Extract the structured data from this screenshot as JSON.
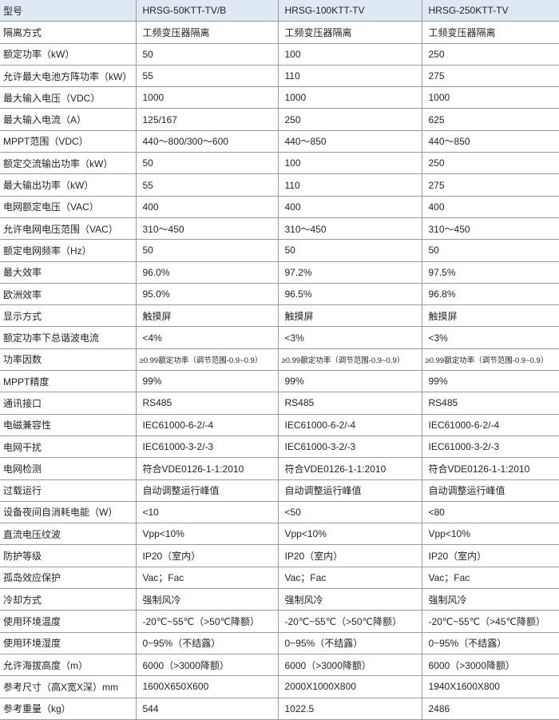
{
  "header": {
    "label": "型号",
    "models": [
      "HRSG-50KTT-TV/B",
      "HRSG-100KTT-TV",
      "HRSG-250KTT-TV"
    ]
  },
  "header_bg": "#dfe9f4",
  "rows": [
    {
      "label": "隔离方式",
      "values": [
        "工频变压器隔离",
        "工频变压器隔离",
        "工频变压器隔离"
      ]
    },
    {
      "label": "额定功率（kW）",
      "values": [
        "50",
        "100",
        "250"
      ]
    },
    {
      "label": "允许最大电池方阵功率（kW）",
      "values": [
        "55",
        "110",
        "275"
      ]
    },
    {
      "label": "最大输入电压（VDC）",
      "values": [
        "1000",
        "1000",
        "1000"
      ]
    },
    {
      "label": "最大输入电流（A）",
      "values": [
        "125/167",
        "250",
        "625"
      ]
    },
    {
      "label": "MPPT范围（VDC）",
      "values": [
        "440～800/300～600",
        "440～850",
        "440～850"
      ]
    },
    {
      "label": "额定交流输出功率（kW）",
      "values": [
        "50",
        "100",
        "250"
      ]
    },
    {
      "label": "最大输出功率（kW）",
      "values": [
        "55",
        "110",
        "275"
      ]
    },
    {
      "label": "电网额定电压（VAC）",
      "values": [
        "400",
        "400",
        "400"
      ]
    },
    {
      "label": "允许电网电压范围（VAC）",
      "values": [
        "310～450",
        "310～450",
        "310～450"
      ]
    },
    {
      "label": "额定电网频率（Hz）",
      "values": [
        "50",
        "50",
        "50"
      ]
    },
    {
      "label": "最大效率",
      "values": [
        "96.0%",
        "97.2%",
        "97.5%"
      ]
    },
    {
      "label": "欧洲效率",
      "values": [
        "95.0%",
        "96.5%",
        "96.8%"
      ]
    },
    {
      "label": "显示方式",
      "values": [
        "触摸屏",
        "触摸屏",
        "触摸屏"
      ]
    },
    {
      "label": "额定功率下总谐波电流",
      "values": [
        "<4%",
        "<3%",
        "<3%"
      ]
    },
    {
      "label": "功率因数",
      "values": [
        "≥0.99额定功率（调节范围-0.9~0.9）",
        "≥0.99额定功率（调节范围-0.9~0.9）",
        "≥0.99额定功率（调节范围-0.9~0.9）"
      ],
      "small": true
    },
    {
      "label": "MPPT精度",
      "values": [
        "99%",
        "99%",
        "99%"
      ]
    },
    {
      "label": "通讯接口",
      "values": [
        "RS485",
        "RS485",
        "RS485"
      ]
    },
    {
      "label": "电磁兼容性",
      "values": [
        "IEC61000-6-2/-4",
        "IEC61000-6-2/-4",
        "IEC61000-6-2/-4"
      ]
    },
    {
      "label": "电网干扰",
      "values": [
        "IEC61000-3-2/-3",
        "IEC61000-3-2/-3",
        "IEC61000-3-2/-3"
      ]
    },
    {
      "label": "电网检测",
      "values": [
        "符合VDE0126-1-1:2010",
        "符合VDE0126-1-1:2010",
        "符合VDE0126-1-1:2010"
      ]
    },
    {
      "label": "过载运行",
      "values": [
        "自动调整运行峰值",
        "自动调整运行峰值",
        "自动调整运行峰值"
      ]
    },
    {
      "label": "设备夜间自消耗电能（W）",
      "values": [
        "<10",
        "<50",
        "<80"
      ]
    },
    {
      "label": "直流电压纹波",
      "values": [
        "Vpp<10%",
        "Vpp<10%",
        "Vpp<10%"
      ]
    },
    {
      "label": "防护等级",
      "values": [
        "IP20（室内）",
        "IP20（室内）",
        "IP20（室内）"
      ]
    },
    {
      "label": "孤岛效应保护",
      "values": [
        "Vac；Fac",
        "Vac；Fac",
        "Vac；Fac"
      ]
    },
    {
      "label": "冷却方式",
      "values": [
        "强制风冷",
        "强制风冷",
        "强制风冷"
      ]
    },
    {
      "label": "使用环境温度",
      "values": [
        "-20℃~55℃（>50℃降额）",
        "-20℃~55℃（>50℃降额）",
        "-20℃~55℃（>45℃降额）"
      ]
    },
    {
      "label": "使用环境湿度",
      "values": [
        "0~95%（不结露）",
        "0~95%（不结露）",
        "0~95%（不结露）"
      ]
    },
    {
      "label": "允许海拔高度（m）",
      "values": [
        "6000（>3000降额）",
        "6000（>3000降额）",
        "6000（>3000降额）"
      ]
    },
    {
      "label": "参考尺寸（高X宽X深）mm",
      "values": [
        "1600X650X600",
        "2000X1000X800",
        "1940X1600X800"
      ]
    },
    {
      "label": "参考重量（kg）",
      "values": [
        "544",
        "1022.5",
        "2486"
      ]
    }
  ]
}
